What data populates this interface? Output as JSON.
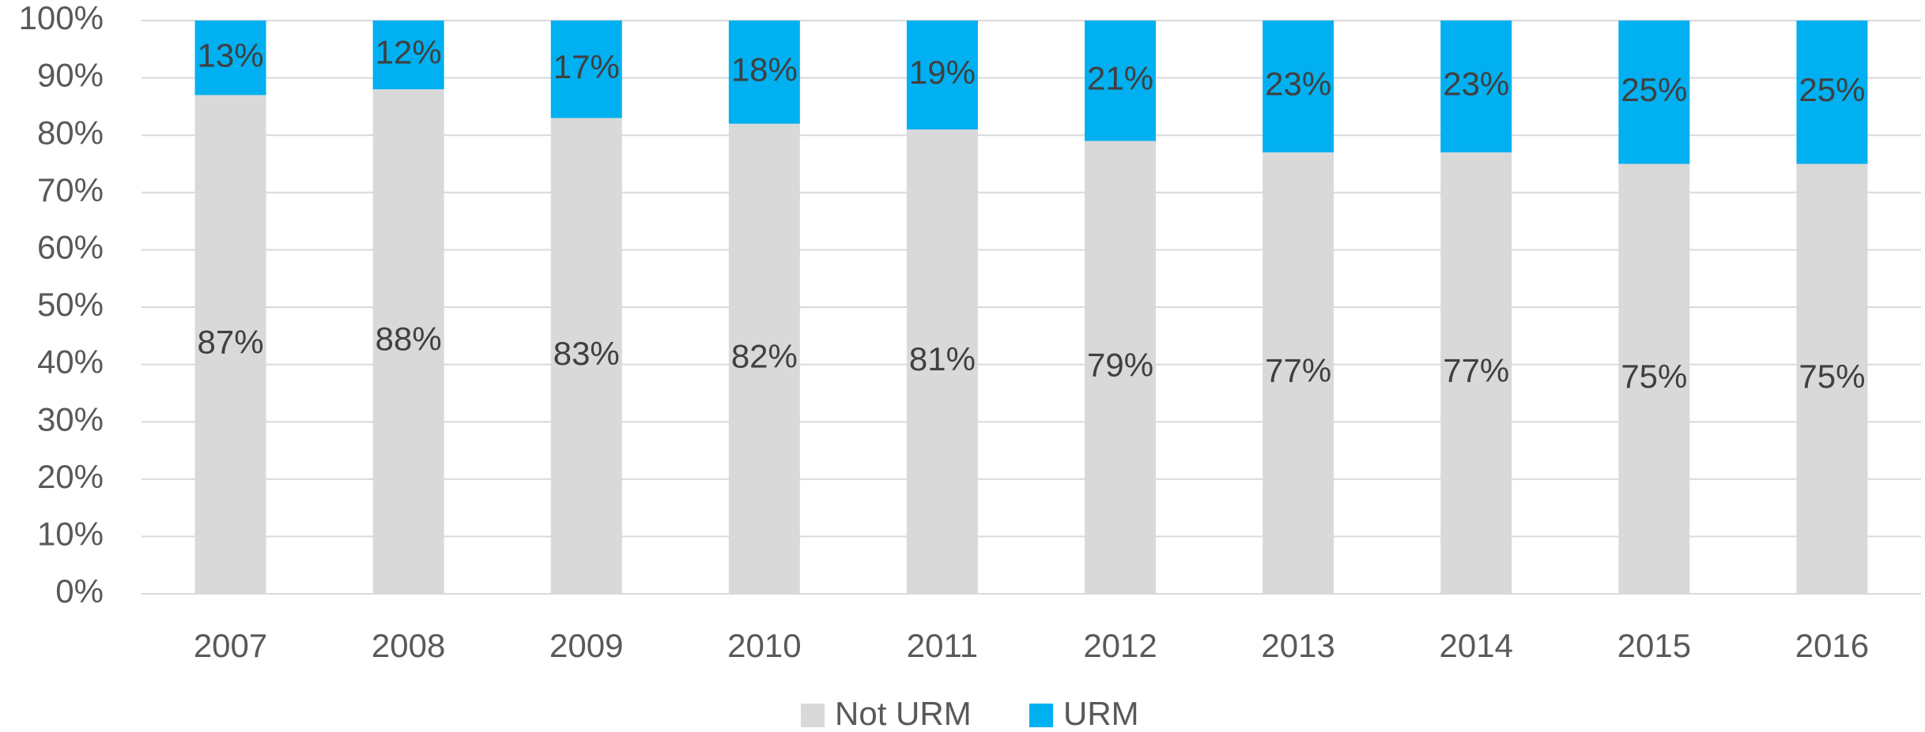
{
  "chart_data": {
    "type": "stacked_bar",
    "categories": [
      "2007",
      "2008",
      "2009",
      "2010",
      "2011",
      "2012",
      "2013",
      "2014",
      "2015",
      "2016"
    ],
    "series": [
      {
        "name": "Not URM",
        "color": "#d9d9d9",
        "values": [
          87,
          88,
          83,
          82,
          81,
          79,
          77,
          77,
          75,
          75
        ],
        "value_labels": [
          "87%",
          "88%",
          "83%",
          "82%",
          "81%",
          "79%",
          "77%",
          "77%",
          "75%",
          "75%"
        ]
      },
      {
        "name": "URM",
        "color": "#00b0f0",
        "values": [
          13,
          12,
          17,
          18,
          19,
          21,
          23,
          23,
          25,
          25
        ],
        "value_labels": [
          "13%",
          "12%",
          "17%",
          "18%",
          "19%",
          "21%",
          "23%",
          "23%",
          "25%",
          "25%"
        ]
      }
    ],
    "ylim": [
      0,
      100
    ],
    "yticks": [
      {
        "value": 0,
        "label": "0%"
      },
      {
        "value": 10,
        "label": "10%"
      },
      {
        "value": 20,
        "label": "20%"
      },
      {
        "value": 30,
        "label": "30%"
      },
      {
        "value": 40,
        "label": "40%"
      },
      {
        "value": 50,
        "label": "50%"
      },
      {
        "value": 60,
        "label": "60%"
      },
      {
        "value": 70,
        "label": "70%"
      },
      {
        "value": 80,
        "label": "80%"
      },
      {
        "value": 90,
        "label": "90%"
      },
      {
        "value": 100,
        "label": "100%"
      }
    ],
    "grid": true,
    "legend": "bottom"
  }
}
